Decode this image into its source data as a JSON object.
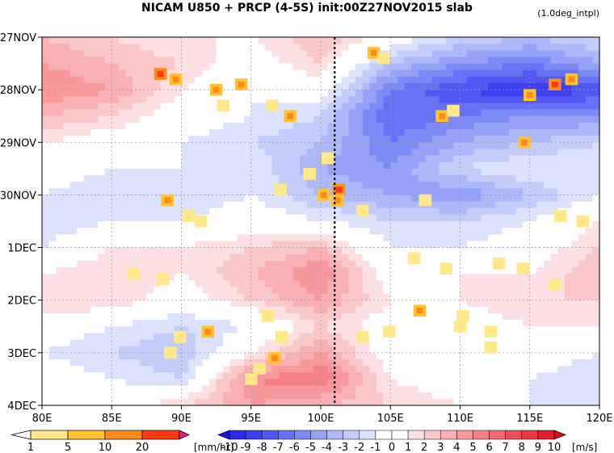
{
  "title": "NICAM   U850  +  PRCP  (4-5S)  init:00Z27NOV2015  slab",
  "subtitle_right": "(1.0deg_intpl)",
  "chart_data": {
    "type": "heatmap",
    "title": "NICAM   U850  +  PRCP  (4-5S)  init:00Z27NOV2015  slab",
    "x_axis": {
      "label": "",
      "range": [
        80,
        120
      ],
      "unit": "E",
      "ticks": [
        80,
        85,
        90,
        95,
        100,
        105,
        110,
        115,
        120
      ],
      "tick_labels": [
        "80E",
        "85E",
        "90E",
        "95E",
        "100E",
        "105E",
        "110E",
        "115E",
        "120E"
      ]
    },
    "y_axis": {
      "label": "",
      "range": [
        0,
        7
      ],
      "direction": "down",
      "ticks": [
        0,
        1,
        2,
        3,
        4,
        5,
        6,
        7
      ],
      "tick_labels": [
        "27NOV",
        "28NOV",
        "29NOV",
        "30NOV",
        "1DEC",
        "2DEC",
        "3DEC",
        "4DEC"
      ]
    },
    "grid": true,
    "reference_line": {
      "x": 101,
      "style": "dashed"
    },
    "u850_field": {
      "name": "U850",
      "unit": "m/s",
      "x": [
        80,
        85,
        90,
        95,
        100,
        105,
        110,
        115,
        120
      ],
      "y": [
        0,
        0.5,
        1,
        1.5,
        2,
        2.5,
        3,
        3.5,
        4,
        4.5,
        5,
        5.5,
        6,
        6.5,
        7
      ],
      "values": [
        [
          3,
          2,
          1,
          1,
          3,
          0,
          -2,
          -3,
          -2
        ],
        [
          4,
          3,
          2,
          0,
          2,
          -3,
          -5,
          -6,
          -4
        ],
        [
          5,
          4,
          1,
          -1,
          0,
          -6,
          -8,
          -9,
          -8
        ],
        [
          3,
          2,
          0,
          -1,
          -2,
          -7,
          -6,
          -5,
          -5
        ],
        [
          1,
          0,
          -1,
          -2,
          -3,
          -6,
          -4,
          -3,
          -2
        ],
        [
          0,
          -1,
          -1,
          -1,
          -4,
          -5,
          -2,
          -1,
          -1
        ],
        [
          -1,
          -2,
          -2,
          -1,
          -3,
          -4,
          -5,
          -3,
          -1
        ],
        [
          -2,
          -1,
          -1,
          0,
          -1,
          -2,
          -2,
          -1,
          1
        ],
        [
          -1,
          1,
          1,
          2,
          3,
          -1,
          -1,
          0,
          2
        ],
        [
          1,
          2,
          1,
          3,
          5,
          0,
          1,
          1,
          3
        ],
        [
          2,
          2,
          0,
          2,
          4,
          1,
          1,
          2,
          2
        ],
        [
          0,
          -1,
          -2,
          -1,
          2,
          0,
          0,
          1,
          1
        ],
        [
          -1,
          -2,
          -3,
          1,
          4,
          0,
          1,
          0,
          -1
        ],
        [
          0,
          -1,
          -2,
          5,
          6,
          1,
          0,
          -1,
          -2
        ],
        [
          1,
          0,
          2,
          4,
          3,
          2,
          1,
          -1,
          -2
        ]
      ]
    },
    "precipitation_cells": {
      "name": "PRCP",
      "unit": "mm/hr",
      "points": [
        {
          "x": 88.5,
          "y": 0.7,
          "v": 14
        },
        {
          "x": 89.6,
          "y": 0.8,
          "v": 7
        },
        {
          "x": 92.5,
          "y": 1.0,
          "v": 9
        },
        {
          "x": 94.3,
          "y": 0.9,
          "v": 5
        },
        {
          "x": 93.0,
          "y": 1.3,
          "v": 3
        },
        {
          "x": 97.8,
          "y": 1.5,
          "v": 6
        },
        {
          "x": 96.5,
          "y": 1.3,
          "v": 3
        },
        {
          "x": 100.5,
          "y": 2.3,
          "v": 3
        },
        {
          "x": 99.2,
          "y": 2.6,
          "v": 4
        },
        {
          "x": 100.2,
          "y": 3.0,
          "v": 6
        },
        {
          "x": 101.3,
          "y": 2.9,
          "v": 16
        },
        {
          "x": 101.2,
          "y": 3.1,
          "v": 9
        },
        {
          "x": 103.8,
          "y": 0.3,
          "v": 5
        },
        {
          "x": 104.5,
          "y": 0.4,
          "v": 3
        },
        {
          "x": 97.1,
          "y": 2.9,
          "v": 4
        },
        {
          "x": 89.0,
          "y": 3.1,
          "v": 5
        },
        {
          "x": 90.5,
          "y": 3.4,
          "v": 2
        },
        {
          "x": 103.0,
          "y": 3.3,
          "v": 4
        },
        {
          "x": 108.7,
          "y": 1.5,
          "v": 6
        },
        {
          "x": 109.5,
          "y": 1.4,
          "v": 4
        },
        {
          "x": 115.0,
          "y": 1.1,
          "v": 8
        },
        {
          "x": 116.8,
          "y": 0.9,
          "v": 12
        },
        {
          "x": 118.0,
          "y": 0.8,
          "v": 9
        },
        {
          "x": 114.6,
          "y": 2.0,
          "v": 6
        },
        {
          "x": 107.5,
          "y": 3.1,
          "v": 3
        },
        {
          "x": 117.2,
          "y": 3.4,
          "v": 2
        },
        {
          "x": 112.8,
          "y": 4.3,
          "v": 2
        },
        {
          "x": 109.0,
          "y": 4.4,
          "v": 3
        },
        {
          "x": 106.7,
          "y": 4.2,
          "v": 2
        },
        {
          "x": 114.5,
          "y": 4.4,
          "v": 2
        },
        {
          "x": 107.1,
          "y": 5.2,
          "v": 6
        },
        {
          "x": 110.2,
          "y": 5.3,
          "v": 3
        },
        {
          "x": 110.0,
          "y": 5.5,
          "v": 2
        },
        {
          "x": 96.2,
          "y": 5.3,
          "v": 4
        },
        {
          "x": 97.2,
          "y": 5.7,
          "v": 3
        },
        {
          "x": 89.9,
          "y": 5.7,
          "v": 3
        },
        {
          "x": 91.9,
          "y": 5.6,
          "v": 7
        },
        {
          "x": 89.2,
          "y": 6.0,
          "v": 3
        },
        {
          "x": 95.6,
          "y": 6.3,
          "v": 3
        },
        {
          "x": 96.7,
          "y": 6.1,
          "v": 5
        },
        {
          "x": 95.0,
          "y": 6.5,
          "v": 3
        },
        {
          "x": 103.0,
          "y": 5.7,
          "v": 3
        },
        {
          "x": 104.9,
          "y": 5.6,
          "v": 2
        },
        {
          "x": 112.2,
          "y": 5.6,
          "v": 2
        },
        {
          "x": 116.8,
          "y": 4.7,
          "v": 3
        },
        {
          "x": 86.6,
          "y": 4.5,
          "v": 2
        },
        {
          "x": 88.7,
          "y": 4.6,
          "v": 2
        },
        {
          "x": 91.4,
          "y": 3.5,
          "v": 2
        },
        {
          "x": 118.8,
          "y": 3.5,
          "v": 4
        },
        {
          "x": 112.2,
          "y": 5.9,
          "v": 2
        }
      ]
    },
    "legends": [
      {
        "name": "PRCP",
        "unit_label": "[mm/hr]",
        "levels": [
          1,
          5,
          10,
          20
        ],
        "tick_labels": [
          "1",
          "5",
          "10",
          "20"
        ],
        "colors": [
          "#ffffff",
          "#ffe88a",
          "#ffc230",
          "#ff8a1a",
          "#ff3a10",
          "#e0207a"
        ]
      },
      {
        "name": "U850",
        "unit_label": "[m/s]",
        "levels": [
          -10,
          -9,
          -8,
          -7,
          -6,
          -5,
          -4,
          -3,
          -2,
          -1,
          0,
          1,
          2,
          3,
          4,
          5,
          6,
          7,
          8,
          9,
          10
        ],
        "tick_labels": [
          "-10",
          "-9",
          "-8",
          "-7",
          "-6",
          "-5",
          "-4",
          "-3",
          "-2",
          "-1",
          "0",
          "1",
          "2",
          "3",
          "4",
          "5",
          "6",
          "7",
          "8",
          "9",
          "10"
        ],
        "colors": [
          "#1a14e6",
          "#2a28ec",
          "#3c40ef",
          "#5058f1",
          "#6672f3",
          "#7d8af5",
          "#95a2f7",
          "#adb8f8",
          "#c4cdfa",
          "#dce2fc",
          "#ffffff",
          "#ffffff",
          "#fde0e1",
          "#fbc8ca",
          "#f9b0b4",
          "#f7989d",
          "#f58087",
          "#f26870",
          "#ee505b",
          "#ea3846",
          "#e21e2e",
          "#dc0a1e"
        ]
      }
    ]
  }
}
